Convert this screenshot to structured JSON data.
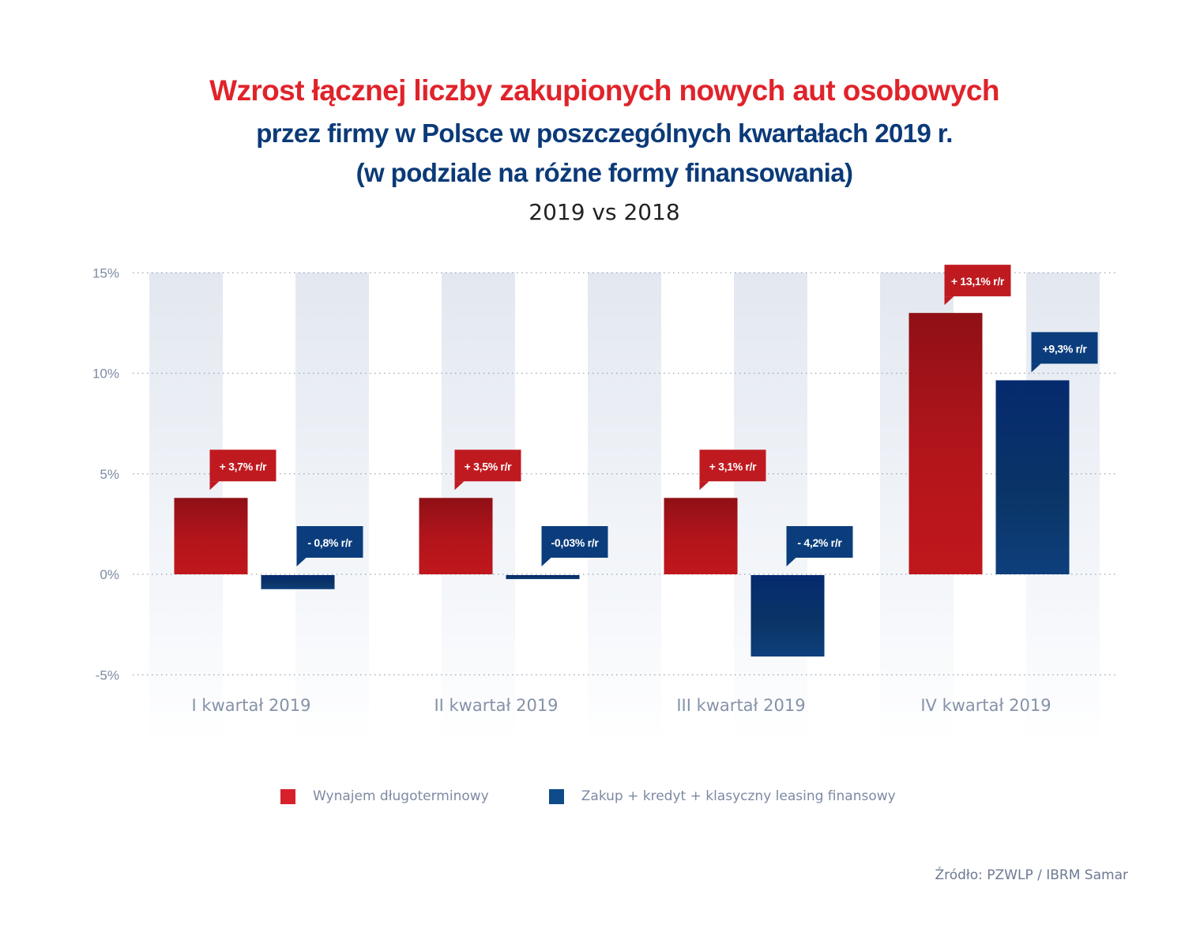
{
  "header": {
    "title_line1": "Wzrost łącznej liczby zakupionych nowych aut osobowych",
    "title_line2": "przez firmy w Polsce w poszczególnych kwartałach 2019 r.",
    "title_line3": "(w podziale na różne formy finansowania)",
    "subtitle": "2019 vs 2018"
  },
  "colors": {
    "title_red": "#e0232a",
    "title_blue": "#0b3a78",
    "series_red": "#c0171c",
    "series_blue": "#0a3a78",
    "band": "#e4e9f1",
    "axis_text": "#7d8aa3"
  },
  "chart_data": {
    "type": "bar",
    "title": "Wzrost łącznej liczby zakupionych nowych aut osobowych przez firmy w Polsce w poszczególnych kwartałach 2019 r. (w podziale na różne formy finansowania)",
    "subtitle": "2019 vs 2018",
    "xlabel": "",
    "ylabel": "",
    "ylim": [
      -5,
      15
    ],
    "yticks": [
      15,
      10,
      5,
      0,
      -5
    ],
    "ytick_labels": [
      "15%",
      "10%",
      "5%",
      "0%",
      "-5%"
    ],
    "grid": true,
    "legend_position": "bottom",
    "categories": [
      "I kwartał 2019",
      "II kwartał 2019",
      "III kwartał 2019",
      "IV kwartał 2019"
    ],
    "series": [
      {
        "name": "Wynajem długoterminowy",
        "color": "#c0171c",
        "values": [
          3.7,
          3.5,
          3.1,
          13.1
        ],
        "drawn_values": [
          3.8,
          3.8,
          3.8,
          13.0
        ],
        "labels": [
          "+ 3,7% r/r",
          "+ 3,5% r/r",
          "+ 3,1% r/r",
          "+ 13,1% r/r"
        ]
      },
      {
        "name": "Zakup + kredyt + klasyczny leasing finansowy",
        "color": "#0a3a78",
        "values": [
          -0.8,
          -0.03,
          -4.2,
          9.3
        ],
        "drawn_values": [
          -0.7,
          -0.2,
          -4.05,
          9.65
        ],
        "labels": [
          "- 0,8% r/r",
          "-0,03% r/r",
          "- 4,2% r/r",
          "+9,3% r/r"
        ]
      }
    ]
  },
  "legend": [
    {
      "label": "Wynajem długoterminowy",
      "color": "#d8202a"
    },
    {
      "label": "Zakup + kredyt + klasyczny leasing finansowy",
      "color": "#0f4a8a"
    }
  ],
  "source": "Źródło: PZWLP / IBRM Samar"
}
